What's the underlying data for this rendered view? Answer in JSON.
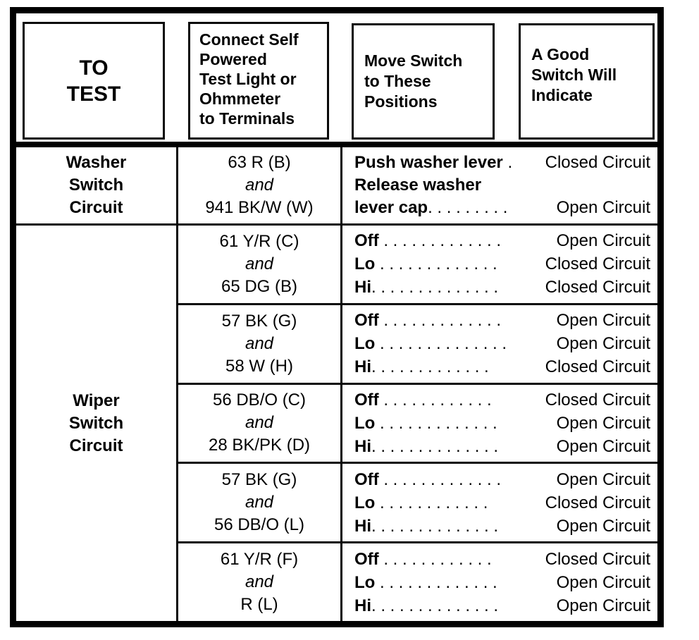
{
  "header": {
    "to_test": {
      "lines": [
        "TO",
        "TEST"
      ]
    },
    "terminals": {
      "lines": [
        "Connect Self",
        "Powered",
        "Test Light or",
        "Ohmmeter",
        "to Terminals"
      ]
    },
    "positions": {
      "lines": [
        "Move Switch",
        "to These",
        "Positions"
      ]
    },
    "indicate": {
      "lines": [
        "A Good",
        "Switch Will",
        "Indicate"
      ]
    }
  },
  "washer": {
    "test_lines": [
      "Washer",
      "Switch",
      "Circuit"
    ],
    "terminal_first": "63 R (B)",
    "terminal_conj": "and",
    "terminal_second": "941 BK/W (W)",
    "lines": [
      {
        "label": "Push washer lever",
        "dots": " .",
        "result": "Closed Circuit"
      },
      {
        "label": "Release washer",
        "dots": "",
        "result": ""
      },
      {
        "label": "lever cap",
        "dots": ". . . . . . . . .",
        "result": "Open Circuit"
      }
    ]
  },
  "wiper": {
    "test_lines": [
      "Wiper",
      "Switch",
      "Circuit"
    ],
    "subrows": [
      {
        "terminal_first": "61 Y/R (C)",
        "terminal_conj": "and",
        "terminal_second": "65 DG (B)",
        "lines": [
          {
            "label": "Off",
            "dots": " . . . . . . . . . . . . .",
            "result": "Open Circuit"
          },
          {
            "label": "Lo",
            "dots": " . . . . . . . . . . . . .",
            "result": "Closed Circuit"
          },
          {
            "label": "Hi",
            "dots": ". . . . . . . . . . . . . .",
            "result": "Closed Circuit"
          }
        ]
      },
      {
        "terminal_first": "57 BK (G)",
        "terminal_conj": "and",
        "terminal_second": "58 W (H)",
        "lines": [
          {
            "label": "Off",
            "dots": " . . . . . . . . . . . . .",
            "result": "Open Circuit"
          },
          {
            "label": "Lo",
            "dots": " . . . . . . . . . . . . . .",
            "result": "Open Circuit"
          },
          {
            "label": "Hi",
            "dots": ". . . . . . . . . . . . .",
            "result": "Closed Circuit"
          }
        ]
      },
      {
        "terminal_first": "56 DB/O (C)",
        "terminal_conj": "and",
        "terminal_second": "28 BK/PK (D)",
        "lines": [
          {
            "label": "Off",
            "dots": " . . . . . . . . . . . .",
            "result": "Closed Circuit"
          },
          {
            "label": "Lo",
            "dots": " . . . . . . . . . . . . .",
            "result": "Open Circuit"
          },
          {
            "label": "Hi",
            "dots": ". . . . . . . . . . . . . .",
            "result": "Open Circuit"
          }
        ]
      },
      {
        "terminal_first": "57 BK (G)",
        "terminal_conj": "and",
        "terminal_second": "56 DB/O (L)",
        "lines": [
          {
            "label": "Off",
            "dots": " . . . . . . . . . . . . .",
            "result": "Open Circuit"
          },
          {
            "label": "Lo",
            "dots": " . . . . . . . . . . . .",
            "result": "Closed Circuit"
          },
          {
            "label": "Hi",
            "dots": ". . . . . . . . . . . . . .",
            "result": "Open Circuit"
          }
        ]
      },
      {
        "terminal_first": "61 Y/R (F)",
        "terminal_conj": "and",
        "terminal_second": "R (L)",
        "lines": [
          {
            "label": "Off",
            "dots": " . . . . . . . . . . . .",
            "result": "Closed Circuit"
          },
          {
            "label": "Lo",
            "dots": " . . . . . . . . . . . . .",
            "result": "Open Circuit"
          },
          {
            "label": "Hi",
            "dots": ". . . . . . . . . . . . . .",
            "result": "Open Circuit"
          }
        ]
      }
    ]
  }
}
